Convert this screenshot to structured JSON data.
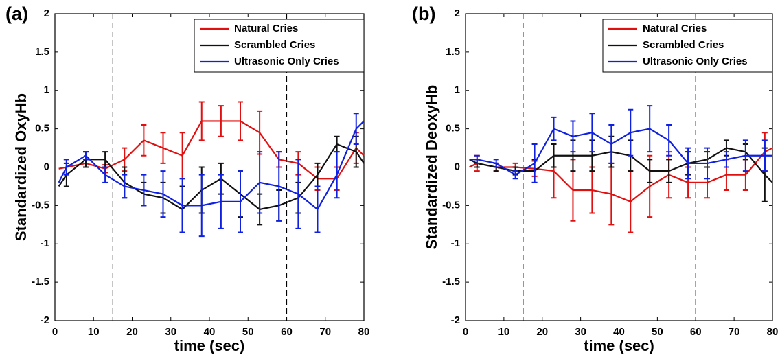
{
  "chart_data": [
    {
      "type": "line",
      "panel_label": "(a)",
      "xlabel": "time (sec)",
      "ylabel": "Standardized OxyHb",
      "xlim": [
        0,
        80
      ],
      "xticks": [
        0,
        10,
        20,
        30,
        40,
        50,
        60,
        70,
        80
      ],
      "ylim": [
        -2,
        2
      ],
      "yticks": [
        -2,
        -1.5,
        -1,
        -0.5,
        0,
        0.5,
        1,
        1.5,
        2
      ],
      "vlines": [
        15,
        60
      ],
      "legend": "upper right",
      "x": [
        1,
        3,
        8,
        13,
        18,
        23,
        28,
        33,
        38,
        43,
        48,
        53,
        58,
        63,
        68,
        73,
        78,
        80
      ],
      "series": [
        {
          "name": "Natural Cries",
          "color": "#e01010",
          "values": [
            -0.02,
            0.0,
            0.05,
            -0.02,
            0.1,
            0.35,
            0.25,
            0.15,
            0.6,
            0.6,
            0.6,
            0.45,
            0.1,
            0.05,
            -0.15,
            -0.15,
            0.25,
            0.15
          ],
          "errors": [
            null,
            0.1,
            0.05,
            0.05,
            0.15,
            0.2,
            0.2,
            0.3,
            0.25,
            0.2,
            0.25,
            0.28,
            0.1,
            0.15,
            0.15,
            0.15,
            0.2,
            null
          ]
        },
        {
          "name": "Scrambled Cries",
          "color": "#111111",
          "values": [
            -0.25,
            -0.1,
            0.1,
            0.1,
            -0.2,
            -0.35,
            -0.4,
            -0.55,
            -0.3,
            -0.15,
            -0.35,
            -0.55,
            -0.5,
            -0.4,
            -0.1,
            0.3,
            0.2,
            0.05
          ],
          "errors": [
            null,
            0.15,
            0.1,
            0.1,
            0.2,
            0.15,
            0.2,
            0.3,
            0.3,
            0.2,
            0.3,
            0.2,
            0.2,
            0.2,
            0.15,
            0.1,
            0.2,
            null
          ]
        },
        {
          "name": "Ultrasonic Only Cries",
          "color": "#1020e0",
          "values": [
            -0.2,
            0.0,
            0.15,
            -0.1,
            -0.25,
            -0.3,
            -0.35,
            -0.5,
            -0.5,
            -0.45,
            -0.45,
            -0.2,
            -0.25,
            -0.35,
            -0.55,
            -0.1,
            0.5,
            0.6
          ],
          "errors": [
            null,
            0.1,
            0.05,
            0.1,
            0.15,
            0.2,
            0.3,
            0.35,
            0.4,
            0.35,
            0.4,
            0.4,
            0.45,
            0.45,
            0.3,
            0.3,
            0.2,
            null
          ]
        }
      ]
    },
    {
      "type": "line",
      "panel_label": "(b)",
      "xlabel": "time (sec)",
      "ylabel": "Standardized DeoxyHb",
      "xlim": [
        0,
        80
      ],
      "xticks": [
        0,
        10,
        20,
        30,
        40,
        50,
        60,
        70,
        80
      ],
      "ylim": [
        -2,
        2
      ],
      "yticks": [
        -2,
        -1.5,
        -1,
        -0.5,
        0,
        0.5,
        1,
        1.5,
        2
      ],
      "vlines": [
        15,
        60
      ],
      "legend": "upper right",
      "x": [
        1,
        3,
        8,
        13,
        18,
        23,
        28,
        33,
        38,
        43,
        48,
        53,
        58,
        63,
        68,
        73,
        78,
        80
      ],
      "series": [
        {
          "name": "Natural Cries",
          "color": "#e01010",
          "values": [
            0.0,
            0.05,
            0.0,
            0.0,
            -0.02,
            -0.05,
            -0.3,
            -0.3,
            -0.35,
            -0.45,
            -0.25,
            -0.1,
            -0.2,
            -0.2,
            -0.1,
            -0.1,
            0.2,
            0.25
          ],
          "errors": [
            null,
            0.1,
            0.05,
            0.05,
            0.1,
            0.35,
            0.4,
            0.3,
            0.4,
            0.4,
            0.4,
            0.3,
            0.2,
            0.2,
            0.2,
            0.2,
            0.25,
            null
          ]
        },
        {
          "name": "Scrambled Cries",
          "color": "#111111",
          "values": [
            0.1,
            0.05,
            0.0,
            -0.05,
            -0.05,
            0.15,
            0.15,
            0.15,
            0.2,
            0.15,
            -0.05,
            -0.05,
            0.05,
            0.1,
            0.25,
            0.2,
            -0.1,
            -0.2
          ],
          "errors": [
            null,
            0.05,
            0.05,
            0.05,
            0.15,
            0.15,
            0.2,
            0.2,
            0.2,
            0.2,
            0.15,
            0.15,
            0.15,
            0.1,
            0.1,
            0.1,
            0.35,
            null
          ]
        },
        {
          "name": "Ultrasonic Only Cries",
          "color": "#1020e0",
          "values": [
            0.1,
            0.1,
            0.05,
            -0.1,
            0.05,
            0.5,
            0.4,
            0.45,
            0.3,
            0.45,
            0.5,
            0.35,
            0.05,
            0.05,
            0.1,
            0.15,
            0.15,
            0.15
          ],
          "errors": [
            null,
            0.05,
            0.05,
            0.05,
            0.25,
            0.15,
            0.2,
            0.25,
            0.25,
            0.3,
            0.3,
            0.2,
            0.2,
            0.2,
            0.1,
            0.2,
            0.2,
            null
          ]
        }
      ]
    }
  ]
}
